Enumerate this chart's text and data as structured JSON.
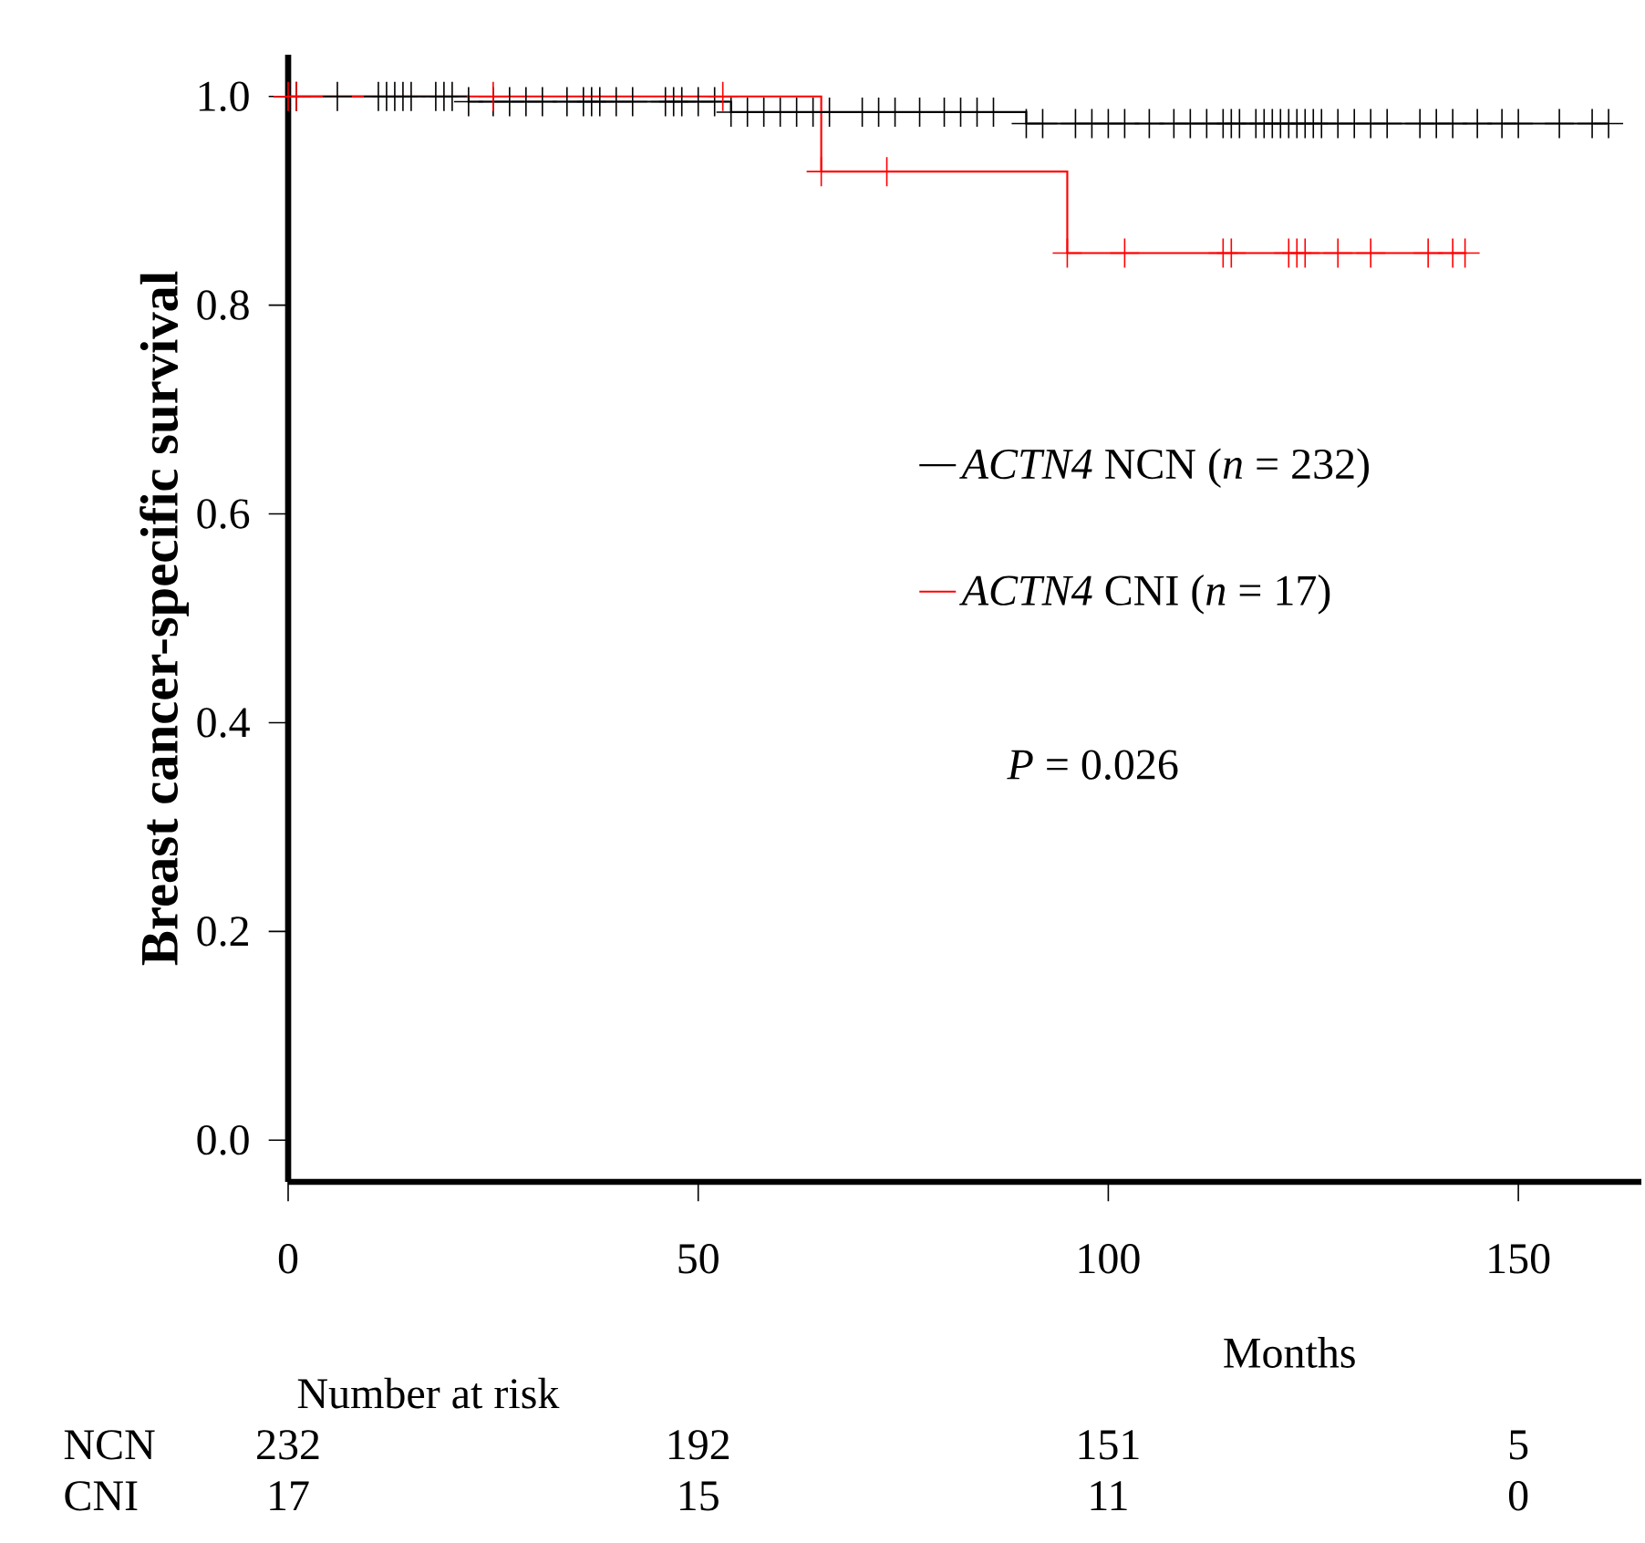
{
  "chart_data": {
    "type": "step",
    "ylabel": "Breast cancer-specific survival",
    "xlabel": "Months",
    "xlim": [
      0,
      165
    ],
    "ylim": [
      -0.04,
      1.04
    ],
    "xticks": [
      0,
      50,
      100,
      150
    ],
    "yticks": [
      {
        "value": 0,
        "label": "0.0"
      },
      {
        "value": 0.2,
        "label": "0.2"
      },
      {
        "value": 0.4,
        "label": "0.4"
      },
      {
        "value": 0.6,
        "label": "0.6"
      },
      {
        "value": 0.8,
        "label": "0.8"
      },
      {
        "value": 1,
        "label": "1.0"
      }
    ],
    "legend": "right",
    "marker": "cross",
    "grid": false,
    "series": [
      {
        "name": "*ACTN4* NCN (*n* = 232)",
        "color": "#000000",
        "x": [
          0,
          1,
          6,
          11,
          12,
          13,
          14,
          15,
          18,
          19,
          20,
          22,
          25,
          27,
          29,
          31,
          34,
          36,
          37,
          38,
          40,
          42,
          46,
          47,
          48,
          50,
          52,
          54,
          56,
          58,
          60,
          62,
          64,
          66,
          70,
          72,
          74,
          77,
          80,
          82,
          84,
          86,
          90,
          92,
          96,
          98,
          100,
          102,
          105,
          108,
          110,
          112,
          114,
          115,
          116,
          118,
          119,
          120,
          121,
          122,
          123,
          124,
          125,
          126,
          128,
          130,
          132,
          134,
          138,
          140,
          142,
          145,
          148,
          150,
          155,
          159,
          161
        ],
        "values": [
          1,
          1,
          1,
          1,
          1,
          1,
          1,
          1,
          1,
          1,
          1,
          0.995,
          0.995,
          0.995,
          0.995,
          0.995,
          0.995,
          0.995,
          0.995,
          0.995,
          0.995,
          0.995,
          0.995,
          0.995,
          0.995,
          0.995,
          0.995,
          0.985,
          0.985,
          0.985,
          0.985,
          0.985,
          0.985,
          0.985,
          0.985,
          0.985,
          0.985,
          0.985,
          0.985,
          0.985,
          0.985,
          0.985,
          0.974,
          0.974,
          0.974,
          0.974,
          0.974,
          0.974,
          0.974,
          0.974,
          0.974,
          0.974,
          0.974,
          0.974,
          0.974,
          0.974,
          0.974,
          0.974,
          0.974,
          0.974,
          0.974,
          0.974,
          0.974,
          0.974,
          0.974,
          0.974,
          0.974,
          0.974,
          0.974,
          0.974,
          0.974,
          0.974,
          0.974,
          0.974,
          0.974,
          0.974,
          0.974
        ]
      },
      {
        "name": "*ACTN4* CNI (*n* = 17)",
        "color": "#ff0000",
        "x": [
          0,
          1,
          25,
          53,
          65,
          73,
          95,
          102,
          114,
          115,
          122,
          123,
          124,
          128,
          132,
          139,
          142,
          143.5
        ],
        "values": [
          1,
          1,
          1,
          1,
          0.928,
          0.928,
          0.85,
          0.85,
          0.85,
          0.85,
          0.85,
          0.85,
          0.85,
          0.85,
          0.85,
          0.85,
          0.85,
          0.85
        ]
      }
    ],
    "annotations": [
      "*P* = 0.026",
      "Number at risk",
      "NCN",
      "232",
      "192",
      "151",
      "5",
      "CNI",
      "17",
      "15",
      "11",
      "0"
    ]
  }
}
